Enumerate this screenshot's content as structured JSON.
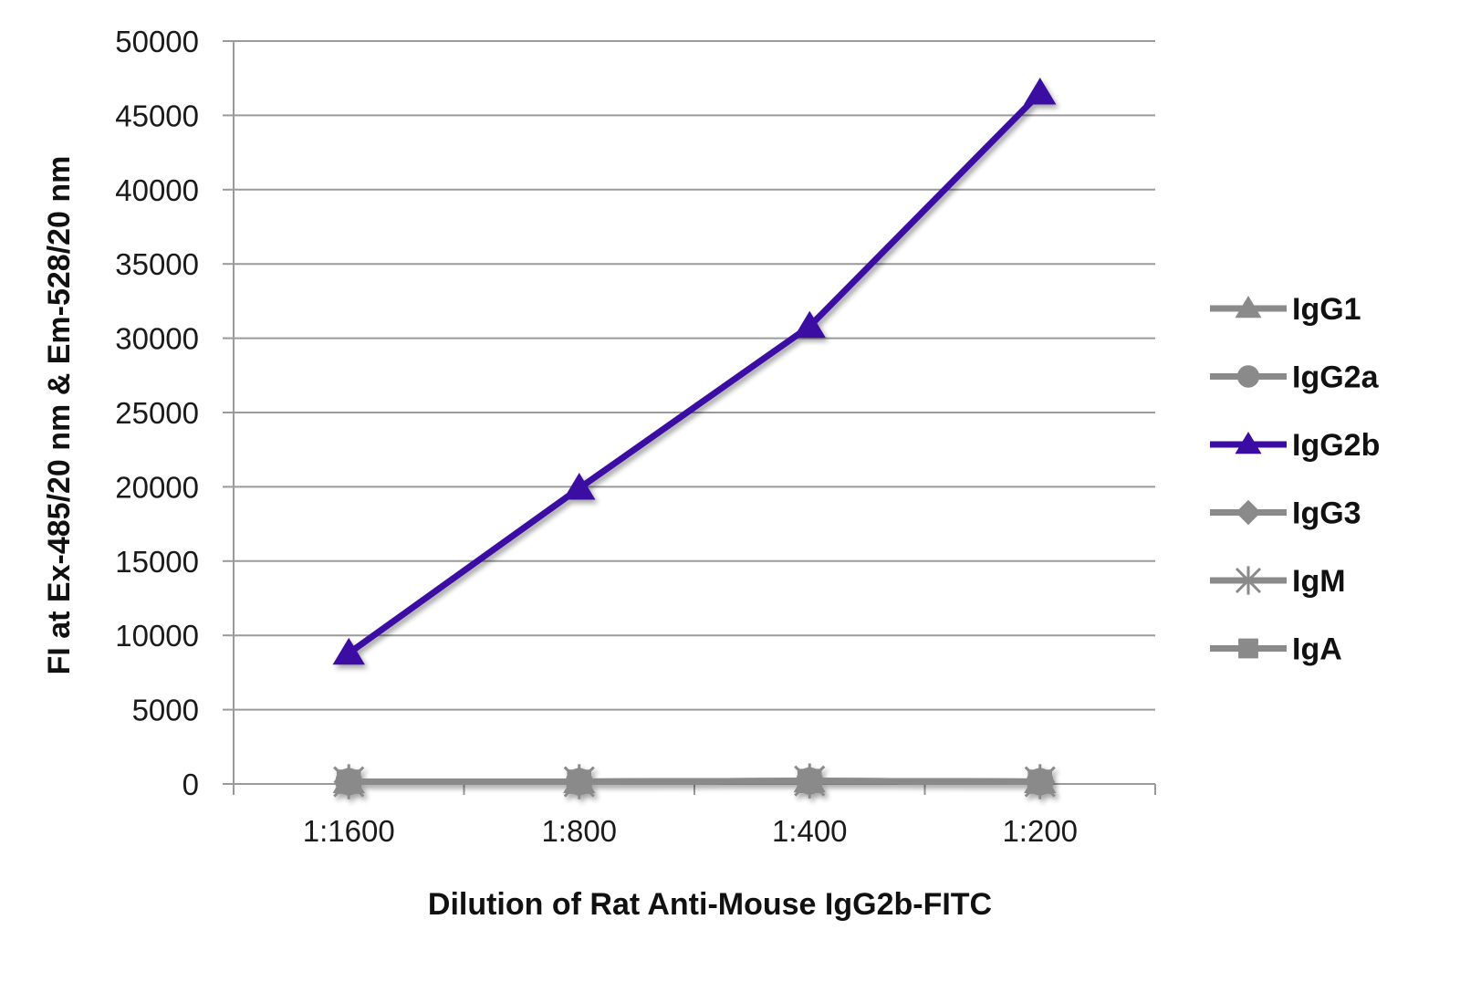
{
  "chart_data": {
    "type": "line",
    "xlabel": "Dilution of Rat Anti-Mouse IgG2b-FITC",
    "ylabel": "FI at Ex-485/20 nm & Em-528/20 nm",
    "categories": [
      "1:1600",
      "1:800",
      "1:400",
      "1:200"
    ],
    "ylim": [
      0,
      50000
    ],
    "yticks": [
      0,
      5000,
      10000,
      15000,
      20000,
      25000,
      30000,
      35000,
      40000,
      45000,
      50000
    ],
    "grid": true,
    "legend_position": "right",
    "series": [
      {
        "name": "IgG1",
        "marker": "triangle",
        "color": "#8a8a8a",
        "values": [
          150,
          150,
          200,
          150
        ]
      },
      {
        "name": "IgG2a",
        "marker": "circle",
        "color": "#8a8a8a",
        "values": [
          150,
          150,
          200,
          150
        ]
      },
      {
        "name": "IgG2b",
        "marker": "triangle",
        "color": "#3a0ca3",
        "values": [
          8800,
          19900,
          30800,
          46500
        ]
      },
      {
        "name": "IgG3",
        "marker": "diamond",
        "color": "#8a8a8a",
        "values": [
          150,
          150,
          200,
          150
        ]
      },
      {
        "name": "IgM",
        "marker": "star",
        "color": "#8a8a8a",
        "values": [
          150,
          150,
          200,
          150
        ]
      },
      {
        "name": "IgA",
        "marker": "square",
        "color": "#8a8a8a",
        "values": [
          150,
          150,
          200,
          150
        ]
      }
    ]
  }
}
